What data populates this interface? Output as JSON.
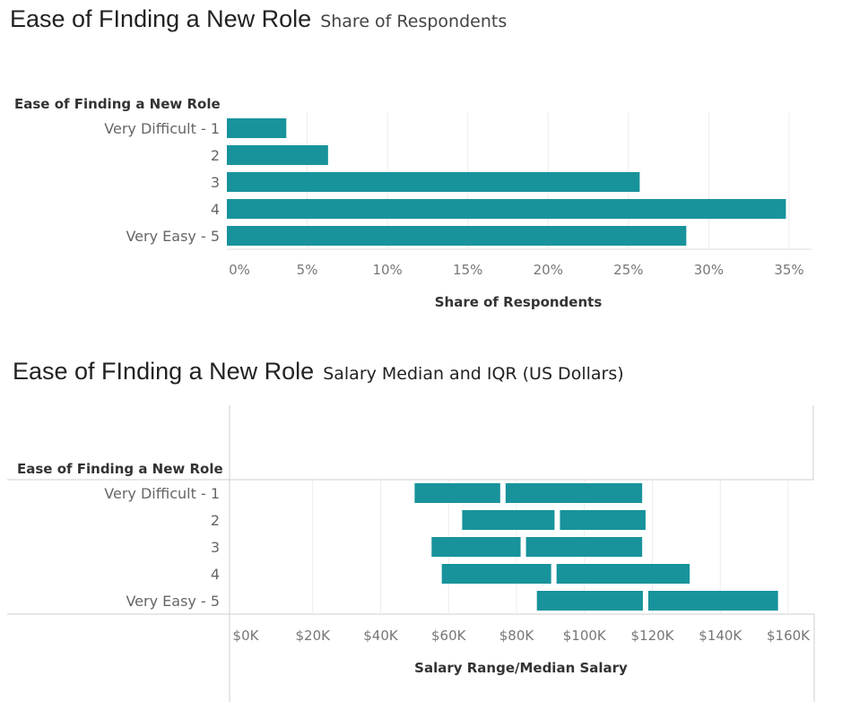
{
  "chart_data": [
    {
      "type": "bar",
      "title": "Ease of FInding a New Role",
      "subtitle": "Share of Respondents",
      "dimension_header": "Ease of Finding a New Role",
      "categories": [
        "Very Difficult - 1",
        "2",
        "3",
        "4",
        "Very Easy - 5"
      ],
      "values": [
        3.7,
        6.3,
        25.7,
        34.8,
        28.6
      ],
      "xlabel": "Share of Respondents",
      "ylabel": "",
      "xlim": [
        0,
        35
      ],
      "ticks": [
        0,
        5,
        10,
        15,
        20,
        25,
        30,
        35
      ],
      "tick_labels": [
        "0%",
        "5%",
        "10%",
        "15%",
        "20%",
        "25%",
        "30%",
        "35%"
      ],
      "orientation": "horizontal",
      "color": "#18939b",
      "grid": true
    },
    {
      "type": "bar",
      "title": "Ease of FInding a New Role",
      "subtitle": "Salary Median and IQR (US Dollars)",
      "dimension_header": "Ease of Finding a New Role",
      "categories": [
        "Very Difficult - 1",
        "2",
        "3",
        "4",
        "Very Easy - 5"
      ],
      "q1": [
        50000,
        64000,
        55000,
        58000,
        86000
      ],
      "median": [
        76000,
        92000,
        82000,
        91000,
        118000
      ],
      "q3": [
        117000,
        118000,
        117000,
        131000,
        157000
      ],
      "xlabel": "Salary Range/Median Salary",
      "ylabel": "",
      "xlim": [
        0,
        160000
      ],
      "ticks": [
        0,
        20000,
        40000,
        60000,
        80000,
        100000,
        120000,
        140000,
        160000
      ],
      "tick_labels": [
        "$0K",
        "$20K",
        "$40K",
        "$60K",
        "$80K",
        "$100K",
        "$120K",
        "$140K",
        "$160K"
      ],
      "orientation": "horizontal",
      "color": "#18939b",
      "grid": true
    }
  ]
}
